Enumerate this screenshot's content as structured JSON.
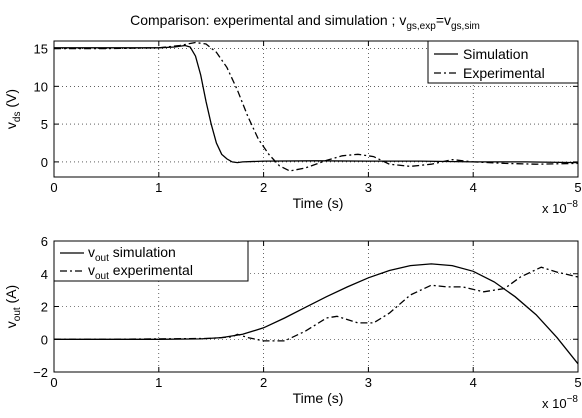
{
  "title": {
    "main": "Comparison: experimental and simulation ; v",
    "sub1": "gs,exp",
    "mid": "=v",
    "sub2": "gs,sim"
  },
  "chart_data": [
    {
      "type": "line",
      "xlabel": "Time (s)",
      "ylabel_main": "v",
      "ylabel_sub": "ds",
      "ylabel_unit": " (V)",
      "xlim": [
        0,
        5e-08
      ],
      "ylim": [
        -2,
        16
      ],
      "xticks": [
        0,
        1e-08,
        2e-08,
        3e-08,
        4e-08,
        5e-08
      ],
      "xtick_labels": [
        "0",
        "1",
        "2",
        "3",
        "4",
        "5"
      ],
      "yticks": [
        0,
        5,
        10,
        15
      ],
      "ytick_labels": [
        "0",
        "5",
        "10",
        "15"
      ],
      "x_multiplier_base": "x 10",
      "x_multiplier_exp": "−8",
      "grid": true,
      "legend_placement": "top-right",
      "series": [
        {
          "name": "Simulation",
          "style": "solid",
          "x": [
            0,
            5e-09,
            1e-08,
            1.15e-08,
            1.25e-08,
            1.3e-08,
            1.35e-08,
            1.4e-08,
            1.45e-08,
            1.5e-08,
            1.55e-08,
            1.6e-08,
            1.65e-08,
            1.7e-08,
            1.75e-08,
            1.8e-08,
            2e-08,
            2.5e-08,
            3e-08,
            3.5e-08,
            4e-08,
            4.5e-08,
            5e-08
          ],
          "y": [
            15.1,
            15.1,
            15.1,
            15.2,
            15.4,
            15.2,
            14.0,
            11.5,
            8.0,
            5.0,
            2.5,
            1.0,
            0.4,
            0.0,
            -0.1,
            0.0,
            0.1,
            0.15,
            0.1,
            0.1,
            0.0,
            0.0,
            -0.1
          ]
        },
        {
          "name": "Experimental",
          "style": "dashdot",
          "x": [
            0,
            5e-09,
            1e-08,
            1.2e-08,
            1.35e-08,
            1.45e-08,
            1.55e-08,
            1.65e-08,
            1.75e-08,
            1.85e-08,
            1.95e-08,
            2.05e-08,
            2.15e-08,
            2.25e-08,
            2.4e-08,
            2.6e-08,
            2.75e-08,
            2.9e-08,
            3.05e-08,
            3.2e-08,
            3.4e-08,
            3.6e-08,
            3.8e-08,
            4e-08,
            4.3e-08,
            4.6e-08,
            5e-08
          ],
          "y": [
            15.0,
            15.0,
            15.1,
            15.4,
            15.8,
            15.6,
            14.5,
            12.5,
            9.5,
            6.0,
            3.0,
            1.0,
            -0.5,
            -1.2,
            -0.8,
            0.2,
            0.8,
            1.0,
            0.7,
            -0.3,
            -0.6,
            -0.3,
            0.3,
            0.0,
            -0.2,
            -0.3,
            -0.2
          ]
        }
      ]
    },
    {
      "type": "line",
      "xlabel": "Time (s)",
      "ylabel_main": "v",
      "ylabel_sub": "out",
      "ylabel_unit": " (A)",
      "xlim": [
        0,
        5e-08
      ],
      "ylim": [
        -2,
        6
      ],
      "xticks": [
        0,
        1e-08,
        2e-08,
        3e-08,
        4e-08,
        5e-08
      ],
      "xtick_labels": [
        "0",
        "1",
        "2",
        "3",
        "4",
        "5"
      ],
      "yticks": [
        -2,
        0,
        2,
        4,
        6
      ],
      "ytick_labels": [
        "−2",
        "0",
        "2",
        "4",
        "6"
      ],
      "x_multiplier_base": "x 10",
      "x_multiplier_exp": "−8",
      "grid": true,
      "legend_placement": "top-left",
      "series": [
        {
          "name_main": "v",
          "name_sub": "out",
          "name_rest": " simulation",
          "style": "solid",
          "x": [
            0,
            5e-09,
            1e-08,
            1.4e-08,
            1.6e-08,
            1.8e-08,
            2e-08,
            2.2e-08,
            2.4e-08,
            2.6e-08,
            2.8e-08,
            3e-08,
            3.2e-08,
            3.4e-08,
            3.6e-08,
            3.8e-08,
            4e-08,
            4.2e-08,
            4.4e-08,
            4.6e-08,
            4.8e-08,
            5e-08
          ],
          "y": [
            0,
            0,
            0,
            0.02,
            0.1,
            0.3,
            0.7,
            1.3,
            1.95,
            2.6,
            3.2,
            3.75,
            4.2,
            4.5,
            4.6,
            4.5,
            4.15,
            3.5,
            2.6,
            1.5,
            0.1,
            -1.5
          ]
        },
        {
          "name_main": "v",
          "name_sub": "out",
          "name_rest": " experimental",
          "style": "dashdot",
          "x": [
            0,
            5e-09,
            1e-08,
            1.5e-08,
            1.7e-08,
            1.75e-08,
            1.85e-08,
            2e-08,
            2.2e-08,
            2.4e-08,
            2.6e-08,
            2.7e-08,
            2.9e-08,
            3.05e-08,
            3.2e-08,
            3.4e-08,
            3.6e-08,
            3.75e-08,
            3.9e-08,
            4.1e-08,
            4.3e-08,
            4.45e-08,
            4.65e-08,
            4.8e-08,
            5e-08
          ],
          "y": [
            0,
            0,
            0.02,
            0.05,
            0.15,
            0.3,
            0.1,
            -0.1,
            -0.1,
            0.5,
            1.3,
            1.4,
            1.0,
            1.0,
            1.6,
            2.7,
            3.3,
            3.2,
            3.2,
            2.9,
            3.1,
            3.8,
            4.4,
            4.1,
            3.8
          ]
        }
      ]
    }
  ]
}
